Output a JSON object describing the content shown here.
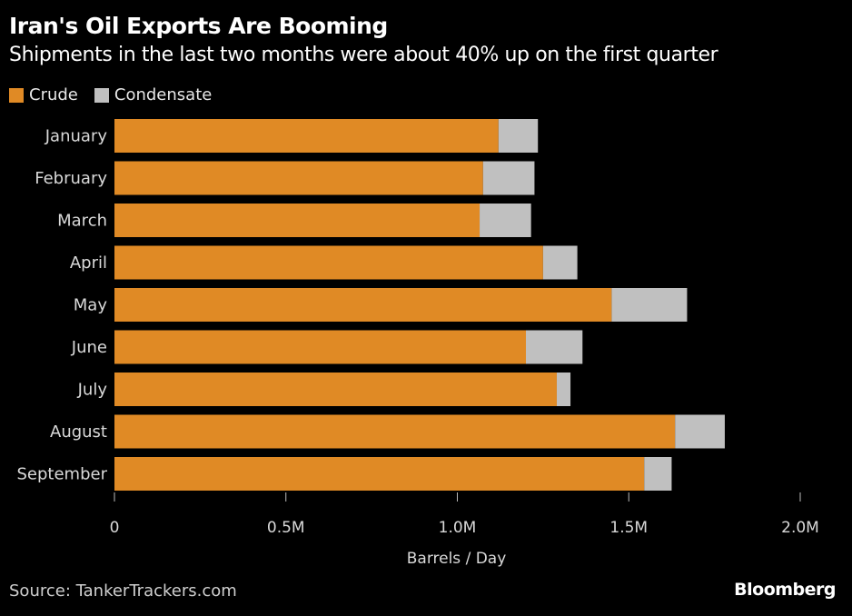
{
  "chart_data": {
    "type": "bar",
    "orientation": "horizontal",
    "stacked": true,
    "title": "Iran's Oil Exports Are Booming",
    "subtitle": "Shipments in the last two months were about 40% up on the first quarter",
    "categories": [
      "January",
      "February",
      "March",
      "April",
      "May",
      "June",
      "July",
      "August",
      "September"
    ],
    "series": [
      {
        "name": "Crude",
        "color": "#e08a25",
        "values": [
          1.12,
          1.075,
          1.065,
          1.25,
          1.45,
          1.2,
          1.29,
          1.635,
          1.545
        ]
      },
      {
        "name": "Condensate",
        "color": "#c0c0c0",
        "values": [
          0.115,
          0.15,
          0.15,
          0.1,
          0.22,
          0.165,
          0.04,
          0.145,
          0.08
        ]
      }
    ],
    "xlabel": "Barrels / Day",
    "ylabel": "",
    "xlim": [
      0,
      2.0
    ],
    "xticks": [
      0,
      0.5,
      1.0,
      1.5,
      2.0
    ],
    "xtick_labels": [
      "0",
      "0.5M",
      "1.0M",
      "1.5M",
      "2.0M"
    ],
    "units": "million barrels per day",
    "grid": false,
    "legend_position": "top-left"
  },
  "footer": {
    "source": "Source: TankerTrackers.com",
    "brand": "Bloomberg"
  },
  "colors": {
    "background": "#000000",
    "crude": "#e08a25",
    "condensate": "#c0c0c0",
    "text": "#ffffff",
    "axis_text": "#d9d9d9"
  }
}
